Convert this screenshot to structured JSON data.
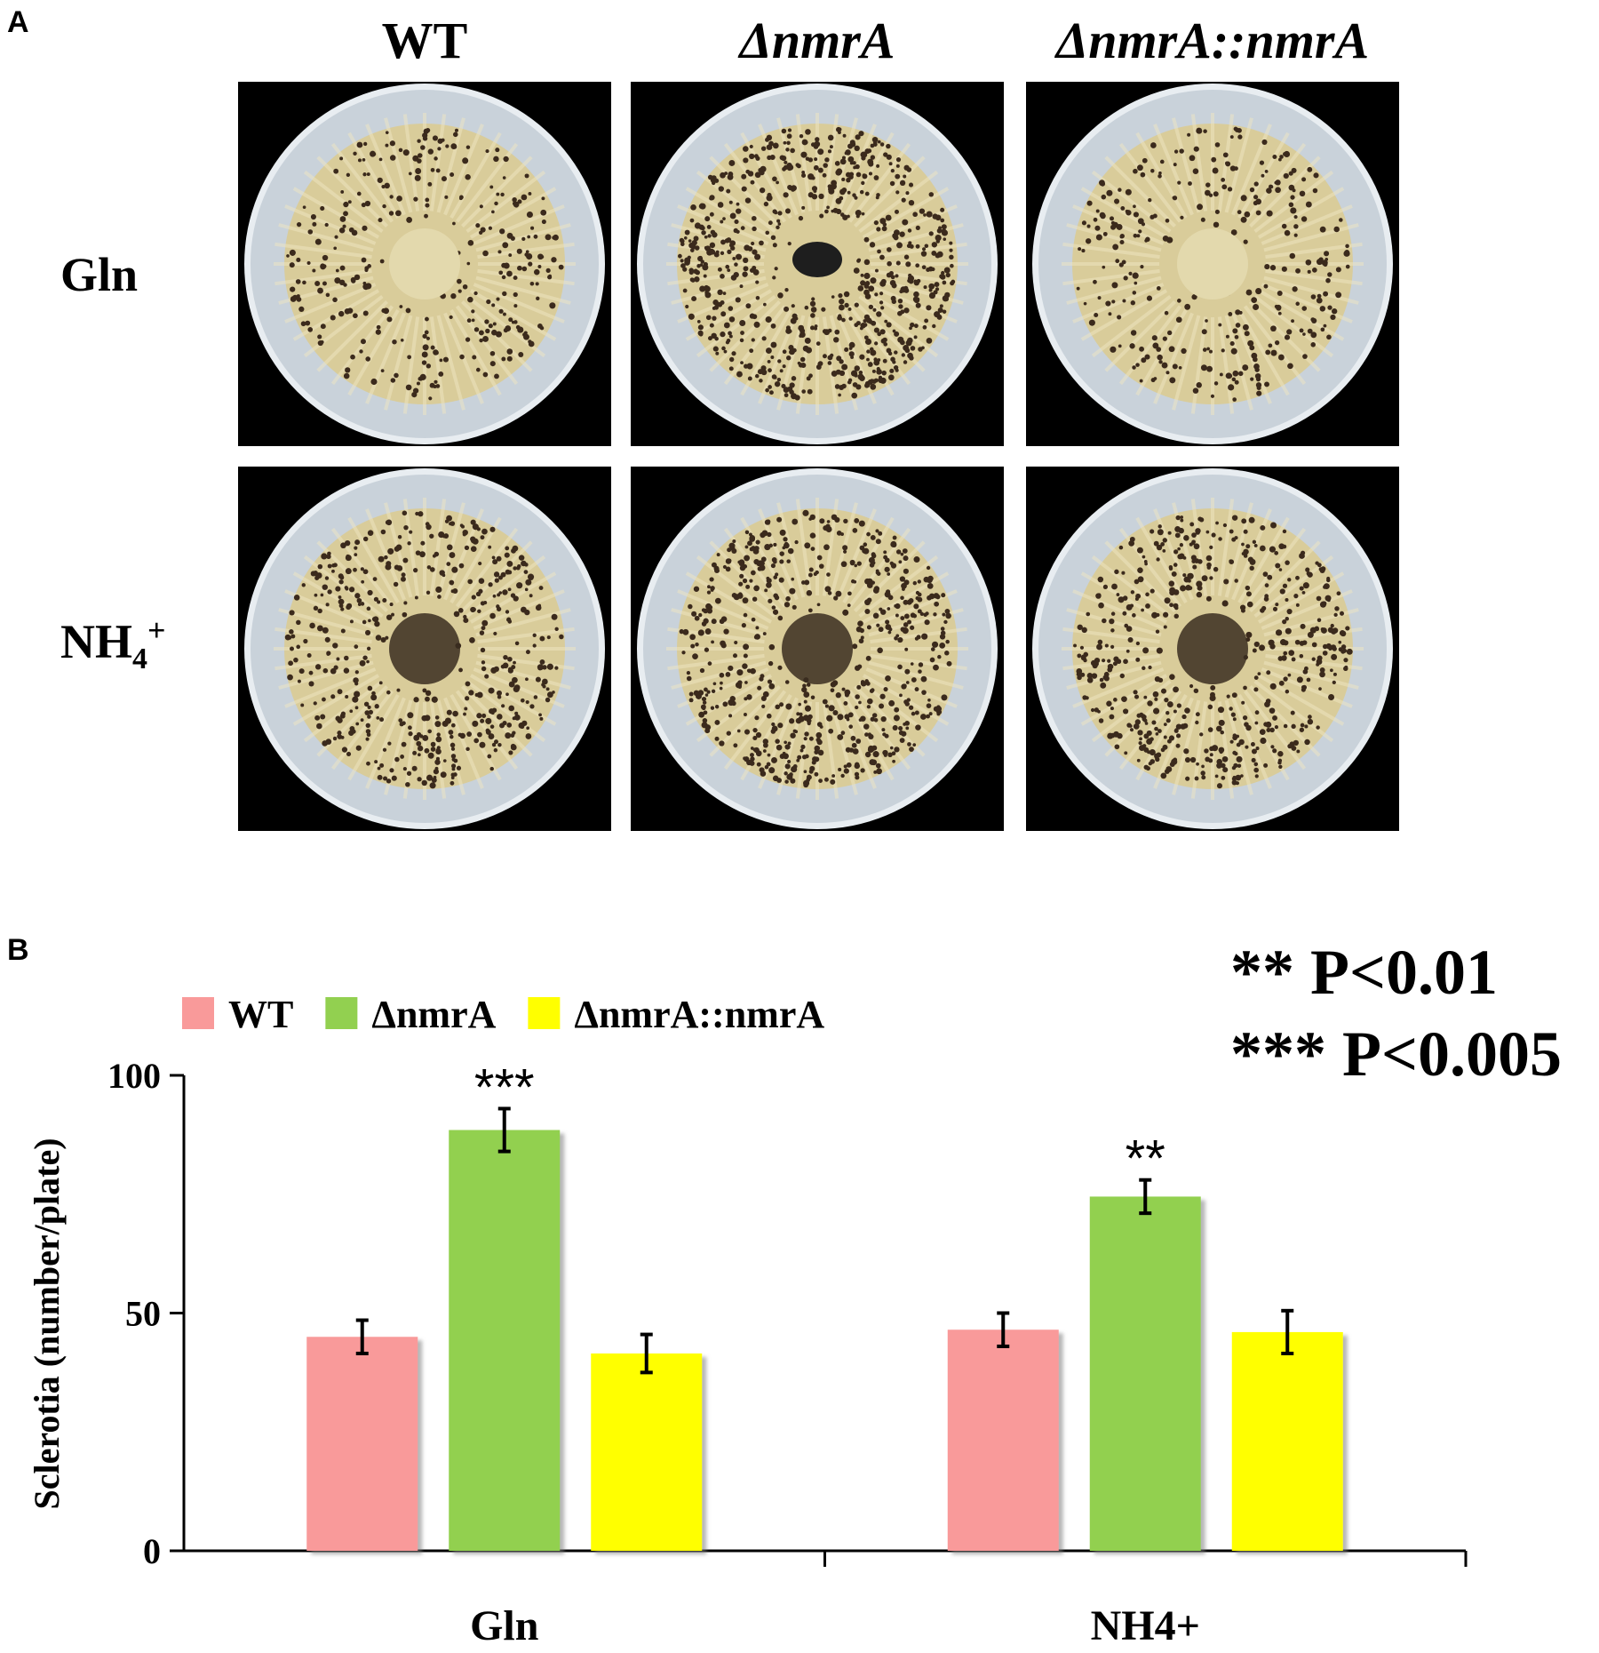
{
  "panels": {
    "a_label": "A",
    "b_label": "B"
  },
  "strains": [
    "WT",
    "ΔnmrA",
    "ΔnmrA::nmrA"
  ],
  "photo_rows": [
    {
      "label": "Gln"
    },
    {
      "label": "NH4+"
    }
  ],
  "plate_images": {
    "description_free": true,
    "colors": {
      "background": "#000000",
      "agar": "#c9d2da",
      "mycelium": "#d9cc9a",
      "sclerotia": "#3b2a1c"
    },
    "sclerotia_density": [
      [
        0.35,
        0.8,
        0.35
      ],
      [
        0.55,
        0.7,
        0.6
      ]
    ]
  },
  "significance_legend": [
    "** P<0.01",
    "*** P<0.005"
  ],
  "chart_data": {
    "type": "bar",
    "categories": [
      "Gln",
      "NH4+"
    ],
    "series": [
      {
        "name": "WT",
        "values": [
          45,
          46.5
        ],
        "errors": [
          3.5,
          3.5
        ],
        "color": "#f99a9a"
      },
      {
        "name": "ΔnmrA",
        "values": [
          88.5,
          74.5
        ],
        "errors": [
          4.5,
          3.5
        ],
        "color": "#92d050"
      },
      {
        "name": "ΔnmrA::nmrA",
        "values": [
          41.5,
          46
        ],
        "errors": [
          4,
          4.5
        ],
        "color": "#ffff00"
      }
    ],
    "annotations": [
      {
        "category": "Gln",
        "series": "ΔnmrA",
        "text": "***"
      },
      {
        "category": "NH4+",
        "series": "ΔnmrA",
        "text": "**"
      }
    ],
    "ylabel": "Sclerotia (number/plate)",
    "xlabel": "",
    "ylim": [
      0,
      100
    ],
    "yticks": [
      0,
      50,
      100
    ],
    "legend_position": "top-left",
    "grid": false
  }
}
